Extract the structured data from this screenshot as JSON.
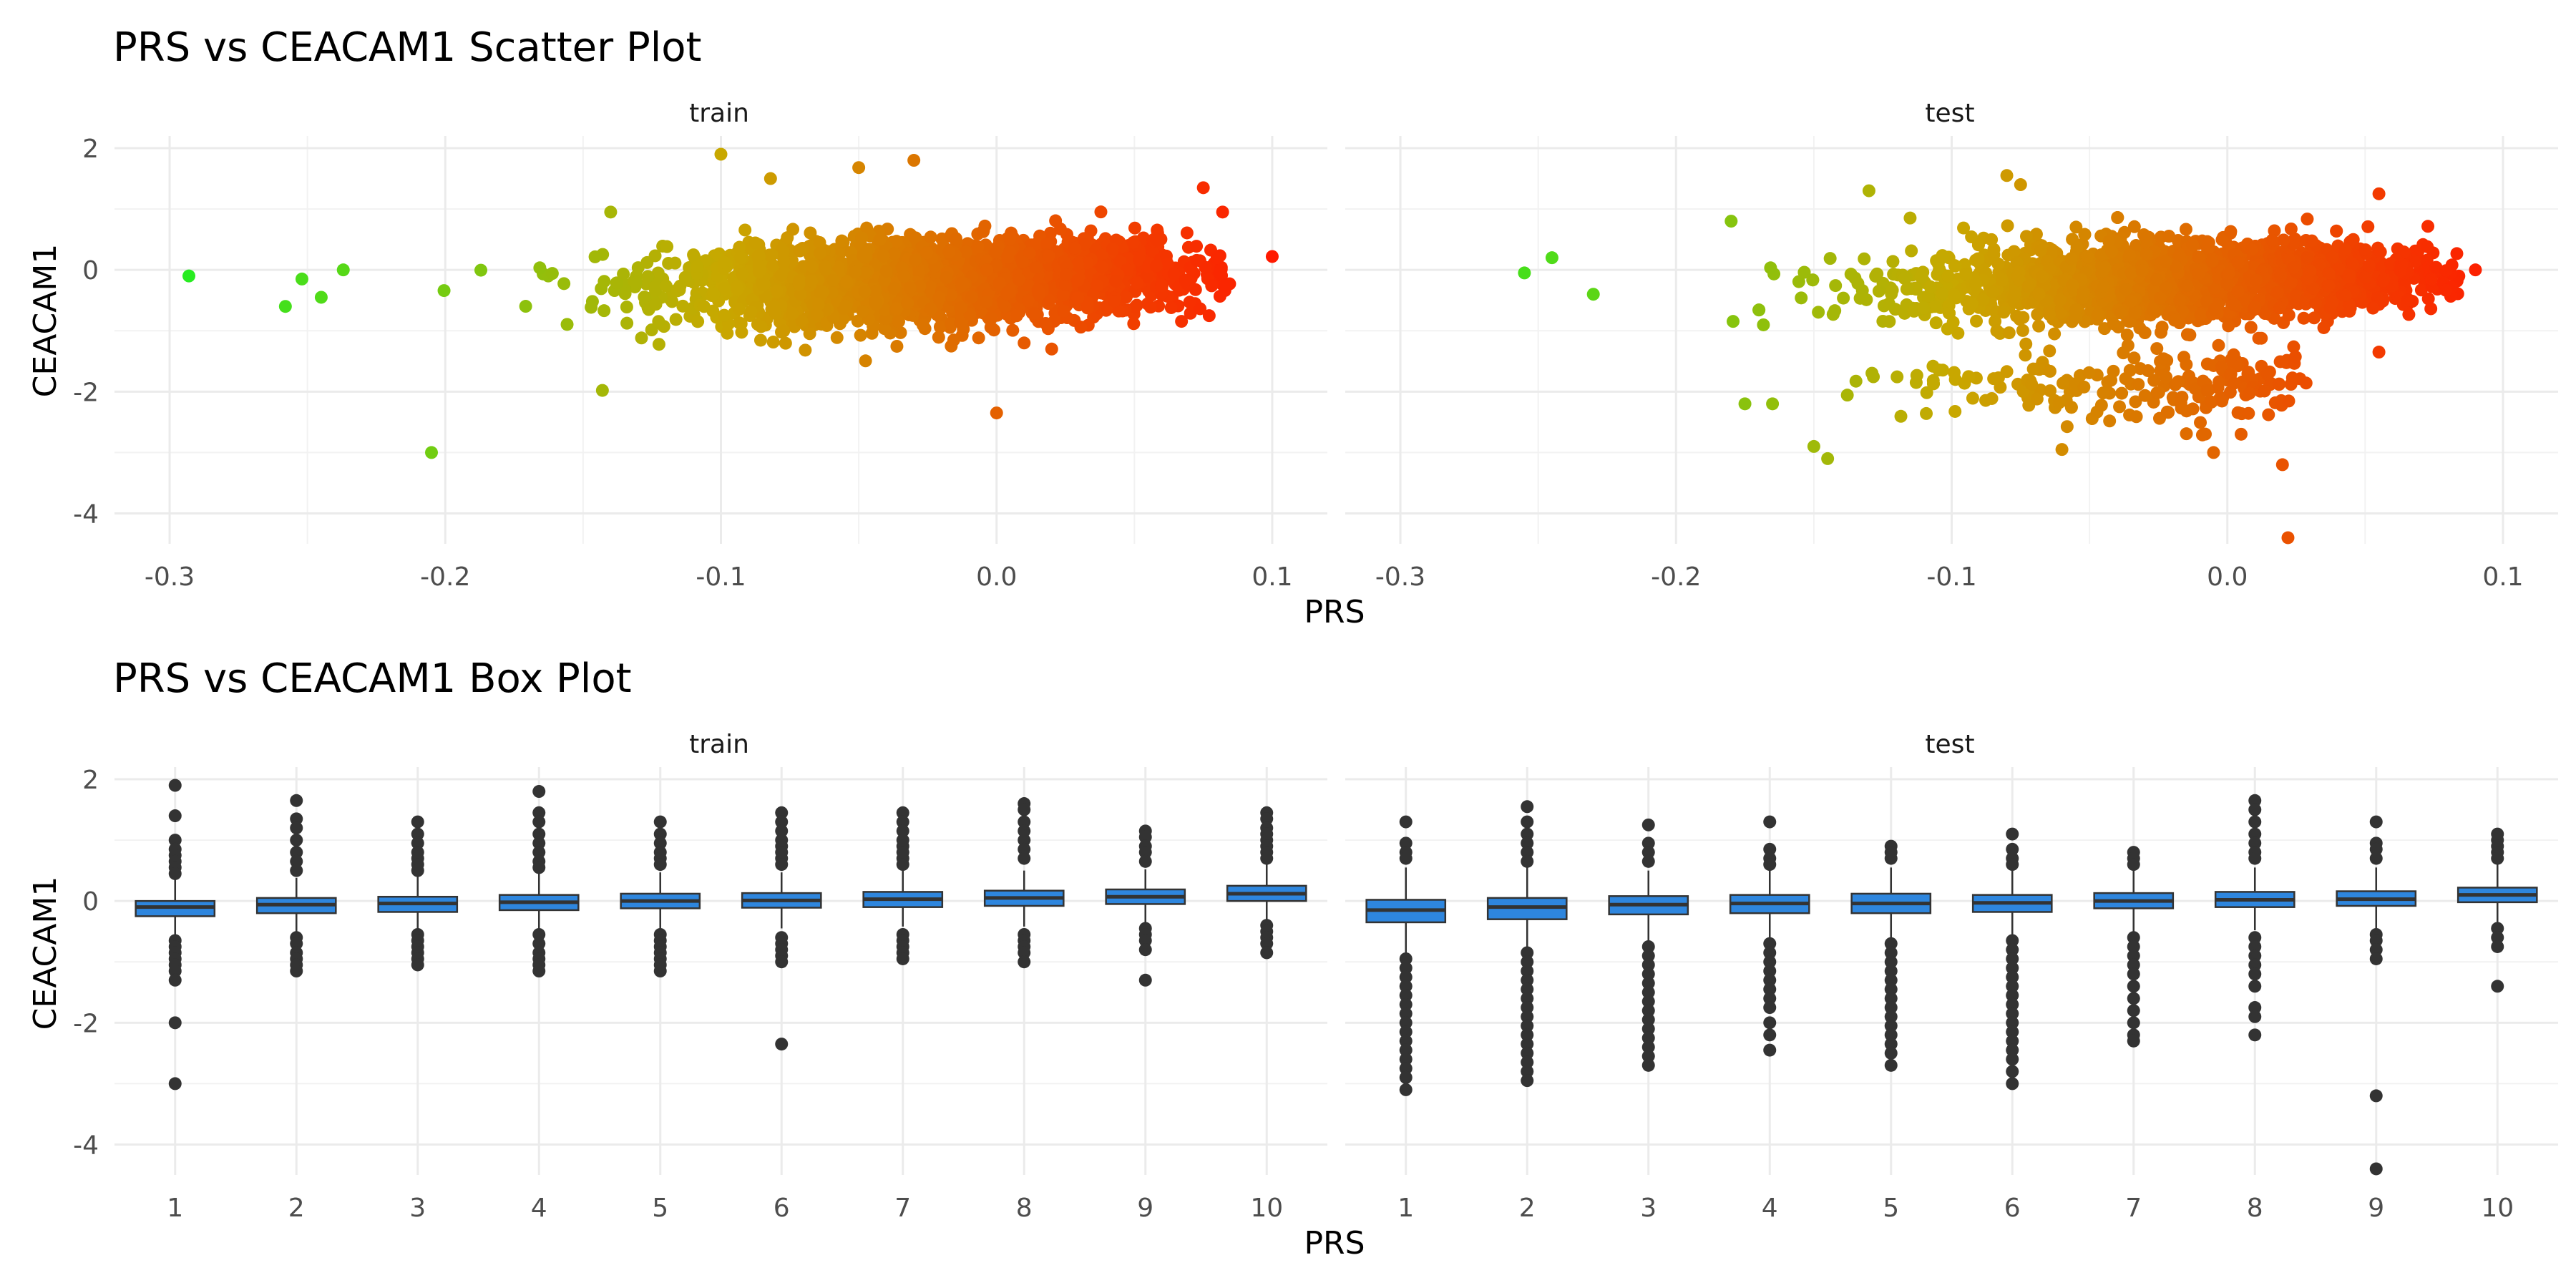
{
  "chart_data": [
    {
      "type": "scatter",
      "title": "PRS vs CEACAM1 Scatter Plot",
      "xlabel": "PRS",
      "ylabel": "CEACAM1",
      "xlim": [
        -0.32,
        0.12
      ],
      "ylim": [
        -4.5,
        2.2
      ],
      "x_ticks": [
        -0.3,
        -0.2,
        -0.1,
        0.0,
        0.1
      ],
      "x_tick_labels": [
        "-0.3",
        "-0.2",
        "-0.1",
        "0.0",
        "0.1"
      ],
      "y_ticks": [
        -4,
        -2,
        0,
        2
      ],
      "y_tick_labels": [
        "-4",
        "-2",
        "0",
        "2"
      ],
      "grid": true,
      "color_gradient": {
        "low": "#22ee22",
        "mid": "#c8a800",
        "high": "#ff1a00",
        "by": "x"
      },
      "panels": [
        {
          "label": "train",
          "outliers": [
            [
              -0.293,
              -0.1
            ],
            [
              -0.205,
              -3.0
            ],
            [
              -0.143,
              -1.98
            ],
            [
              -0.1,
              1.9
            ],
            [
              -0.082,
              1.5
            ],
            [
              -0.05,
              1.68
            ],
            [
              -0.03,
              1.8
            ],
            [
              0.0,
              -2.35
            ],
            [
              0.1,
              0.22
            ],
            [
              0.082,
              0.95
            ],
            [
              0.08,
              0.2
            ],
            [
              -0.258,
              -0.6
            ],
            [
              -0.245,
              -0.45
            ],
            [
              -0.252,
              -0.15
            ],
            [
              -0.237,
              0.0
            ],
            [
              -0.14,
              0.95
            ],
            [
              0.01,
              -1.2
            ],
            [
              0.02,
              -1.3
            ],
            [
              0.075,
              1.35
            ]
          ]
        },
        {
          "label": "test",
          "outliers": [
            [
              -0.255,
              -0.05
            ],
            [
              -0.245,
              0.2
            ],
            [
              -0.23,
              -0.4
            ],
            [
              -0.175,
              -2.2
            ],
            [
              -0.165,
              -2.2
            ],
            [
              -0.15,
              -2.9
            ],
            [
              -0.145,
              -3.1
            ],
            [
              -0.13,
              1.3
            ],
            [
              -0.08,
              1.55
            ],
            [
              -0.075,
              1.4
            ],
            [
              -0.06,
              -2.95
            ],
            [
              0.02,
              -3.2
            ],
            [
              0.022,
              -4.4
            ],
            [
              -0.005,
              -3.0
            ],
            [
              0.005,
              -2.7
            ],
            [
              0.09,
              0.0
            ],
            [
              0.055,
              -1.35
            ],
            [
              0.035,
              -0.95
            ],
            [
              0.055,
              1.25
            ],
            [
              -0.18,
              0.8
            ]
          ]
        }
      ]
    },
    {
      "type": "box",
      "title": "PRS vs CEACAM1 Box Plot",
      "xlabel": "PRS",
      "ylabel": "CEACAM1",
      "categories": [
        "1",
        "2",
        "3",
        "4",
        "5",
        "6",
        "7",
        "8",
        "9",
        "10"
      ],
      "ylim": [
        -4.5,
        2.2
      ],
      "y_ticks": [
        -4,
        -2,
        0,
        2
      ],
      "y_tick_labels": [
        "-4",
        "-2",
        "0",
        "2"
      ],
      "grid": true,
      "box_fill": "#2e86de",
      "panels": [
        {
          "label": "train",
          "boxes": [
            {
              "q1": -0.25,
              "median": -0.1,
              "q3": 0.0,
              "whisker_low": -0.6,
              "whisker_high": 0.35,
              "outliers": [
                1.9,
                1.4,
                1.0,
                0.85,
                0.75,
                0.65,
                0.55,
                0.45,
                -0.65,
                -0.75,
                -0.85,
                -0.95,
                -1.05,
                -1.15,
                -1.3,
                -2.0,
                -3.0
              ]
            },
            {
              "q1": -0.2,
              "median": -0.06,
              "q3": 0.05,
              "whisker_low": -0.5,
              "whisker_high": 0.38,
              "outliers": [
                1.65,
                1.35,
                1.2,
                1.0,
                0.8,
                0.65,
                0.5,
                -0.6,
                -0.7,
                -0.85,
                -0.95,
                -1.05,
                -1.15
              ]
            },
            {
              "q1": -0.18,
              "median": -0.04,
              "q3": 0.07,
              "whisker_low": -0.48,
              "whisker_high": 0.4,
              "outliers": [
                1.3,
                1.1,
                0.95,
                0.8,
                0.7,
                0.6,
                0.5,
                -0.55,
                -0.65,
                -0.75,
                -0.85,
                -0.95,
                -1.05
              ]
            },
            {
              "q1": -0.15,
              "median": -0.02,
              "q3": 0.1,
              "whisker_low": -0.48,
              "whisker_high": 0.45,
              "outliers": [
                1.8,
                1.45,
                1.3,
                1.1,
                0.95,
                0.8,
                0.65,
                0.55,
                -0.55,
                -0.7,
                -0.85,
                -0.95,
                -1.05,
                -1.15
              ]
            },
            {
              "q1": -0.12,
              "median": 0.0,
              "q3": 0.12,
              "whisker_low": -0.45,
              "whisker_high": 0.47,
              "outliers": [
                1.3,
                1.1,
                0.95,
                0.8,
                0.7,
                0.6,
                -0.55,
                -0.65,
                -0.75,
                -0.85,
                -0.95,
                -1.05,
                -1.15
              ]
            },
            {
              "q1": -0.11,
              "median": 0.01,
              "q3": 0.13,
              "whisker_low": -0.45,
              "whisker_high": 0.47,
              "outliers": [
                1.45,
                1.3,
                1.15,
                1.0,
                0.9,
                0.8,
                0.7,
                0.6,
                -0.6,
                -0.7,
                -0.8,
                -0.9,
                -1.0,
                -2.35
              ]
            },
            {
              "q1": -0.1,
              "median": 0.03,
              "q3": 0.15,
              "whisker_low": -0.42,
              "whisker_high": 0.5,
              "outliers": [
                1.45,
                1.3,
                1.15,
                1.0,
                0.9,
                0.8,
                0.7,
                0.6,
                -0.55,
                -0.65,
                -0.75,
                -0.85,
                -0.95
              ]
            },
            {
              "q1": -0.08,
              "median": 0.05,
              "q3": 0.17,
              "whisker_low": -0.42,
              "whisker_high": 0.5,
              "outliers": [
                1.6,
                1.5,
                1.3,
                1.15,
                1.0,
                0.85,
                0.7,
                -0.55,
                -0.65,
                -0.75,
                -0.85,
                -1.0
              ]
            },
            {
              "q1": -0.05,
              "median": 0.07,
              "q3": 0.19,
              "whisker_low": -0.38,
              "whisker_high": 0.52,
              "outliers": [
                1.15,
                1.05,
                0.9,
                0.8,
                0.65,
                -0.45,
                -0.55,
                -0.65,
                -0.8,
                -1.3
              ]
            },
            {
              "q1": 0.0,
              "median": 0.12,
              "q3": 0.25,
              "whisker_low": -0.3,
              "whisker_high": 0.6,
              "outliers": [
                1.45,
                1.35,
                1.2,
                1.1,
                1.0,
                0.9,
                0.8,
                0.7,
                -0.4,
                -0.5,
                -0.6,
                -0.7,
                -0.85
              ]
            }
          ]
        },
        {
          "label": "test",
          "boxes": [
            {
              "q1": -0.35,
              "median": -0.15,
              "q3": 0.02,
              "whisker_low": -0.85,
              "whisker_high": 0.55,
              "outliers": [
                1.3,
                0.95,
                0.8,
                0.7,
                -0.95,
                -1.1,
                -1.25,
                -1.4,
                -1.55,
                -1.7,
                -1.85,
                -2.0,
                -2.15,
                -2.3,
                -2.45,
                -2.6,
                -2.75,
                -2.9,
                -3.1
              ]
            },
            {
              "q1": -0.3,
              "median": -0.1,
              "q3": 0.05,
              "whisker_low": -0.75,
              "whisker_high": 0.55,
              "outliers": [
                1.55,
                1.3,
                1.1,
                0.95,
                0.8,
                0.65,
                -0.85,
                -1.0,
                -1.15,
                -1.3,
                -1.45,
                -1.6,
                -1.75,
                -1.9,
                -2.05,
                -2.2,
                -2.35,
                -2.5,
                -2.65,
                -2.8,
                -2.95
              ]
            },
            {
              "q1": -0.22,
              "median": -0.06,
              "q3": 0.08,
              "whisker_low": -0.65,
              "whisker_high": 0.5,
              "outliers": [
                1.25,
                0.95,
                0.8,
                0.65,
                -0.75,
                -0.9,
                -1.05,
                -1.2,
                -1.35,
                -1.5,
                -1.65,
                -1.8,
                -1.95,
                -2.1,
                -2.25,
                -2.4,
                -2.55,
                -2.7
              ]
            },
            {
              "q1": -0.2,
              "median": -0.04,
              "q3": 0.1,
              "whisker_low": -0.6,
              "whisker_high": 0.52,
              "outliers": [
                1.3,
                0.85,
                0.7,
                0.6,
                -0.7,
                -0.85,
                -1.0,
                -1.15,
                -1.3,
                -1.45,
                -1.6,
                -1.75,
                -2.0,
                -2.2,
                -2.45
              ]
            },
            {
              "q1": -0.2,
              "median": -0.04,
              "q3": 0.12,
              "whisker_low": -0.6,
              "whisker_high": 0.55,
              "outliers": [
                0.9,
                0.8,
                0.7,
                -0.7,
                -0.85,
                -1.0,
                -1.15,
                -1.3,
                -1.45,
                -1.6,
                -1.75,
                -1.9,
                -2.05,
                -2.2,
                -2.35,
                -2.5,
                -2.7
              ]
            },
            {
              "q1": -0.18,
              "median": -0.03,
              "q3": 0.1,
              "whisker_low": -0.55,
              "whisker_high": 0.52,
              "outliers": [
                1.1,
                0.85,
                0.7,
                0.6,
                -0.65,
                -0.8,
                -0.95,
                -1.1,
                -1.25,
                -1.4,
                -1.55,
                -1.7,
                -1.85,
                -2.0,
                -2.15,
                -2.3,
                -2.45,
                -2.6,
                -2.8,
                -3.0
              ]
            },
            {
              "q1": -0.12,
              "median": 0.0,
              "q3": 0.13,
              "whisker_low": -0.5,
              "whisker_high": 0.52,
              "outliers": [
                0.8,
                0.7,
                0.6,
                -0.6,
                -0.75,
                -0.9,
                -1.05,
                -1.2,
                -1.4,
                -1.6,
                -1.8,
                -2.0,
                -2.2,
                -2.3
              ]
            },
            {
              "q1": -0.1,
              "median": 0.02,
              "q3": 0.15,
              "whisker_low": -0.48,
              "whisker_high": 0.55,
              "outliers": [
                1.65,
                1.5,
                1.3,
                1.1,
                0.95,
                0.8,
                0.7,
                -0.6,
                -0.75,
                -0.9,
                -1.05,
                -1.2,
                -1.4,
                -1.75,
                -1.9,
                -2.2
              ]
            },
            {
              "q1": -0.08,
              "median": 0.03,
              "q3": 0.16,
              "whisker_low": -0.45,
              "whisker_high": 0.55,
              "outliers": [
                1.3,
                0.95,
                0.85,
                0.7,
                -0.55,
                -0.65,
                -0.8,
                -0.95,
                -3.2,
                -4.4
              ]
            },
            {
              "q1": -0.02,
              "median": 0.1,
              "q3": 0.22,
              "whisker_low": -0.35,
              "whisker_high": 0.6,
              "outliers": [
                1.1,
                1.0,
                0.9,
                0.8,
                0.7,
                -0.45,
                -0.6,
                -0.75,
                -1.4
              ]
            }
          ]
        }
      ]
    }
  ]
}
